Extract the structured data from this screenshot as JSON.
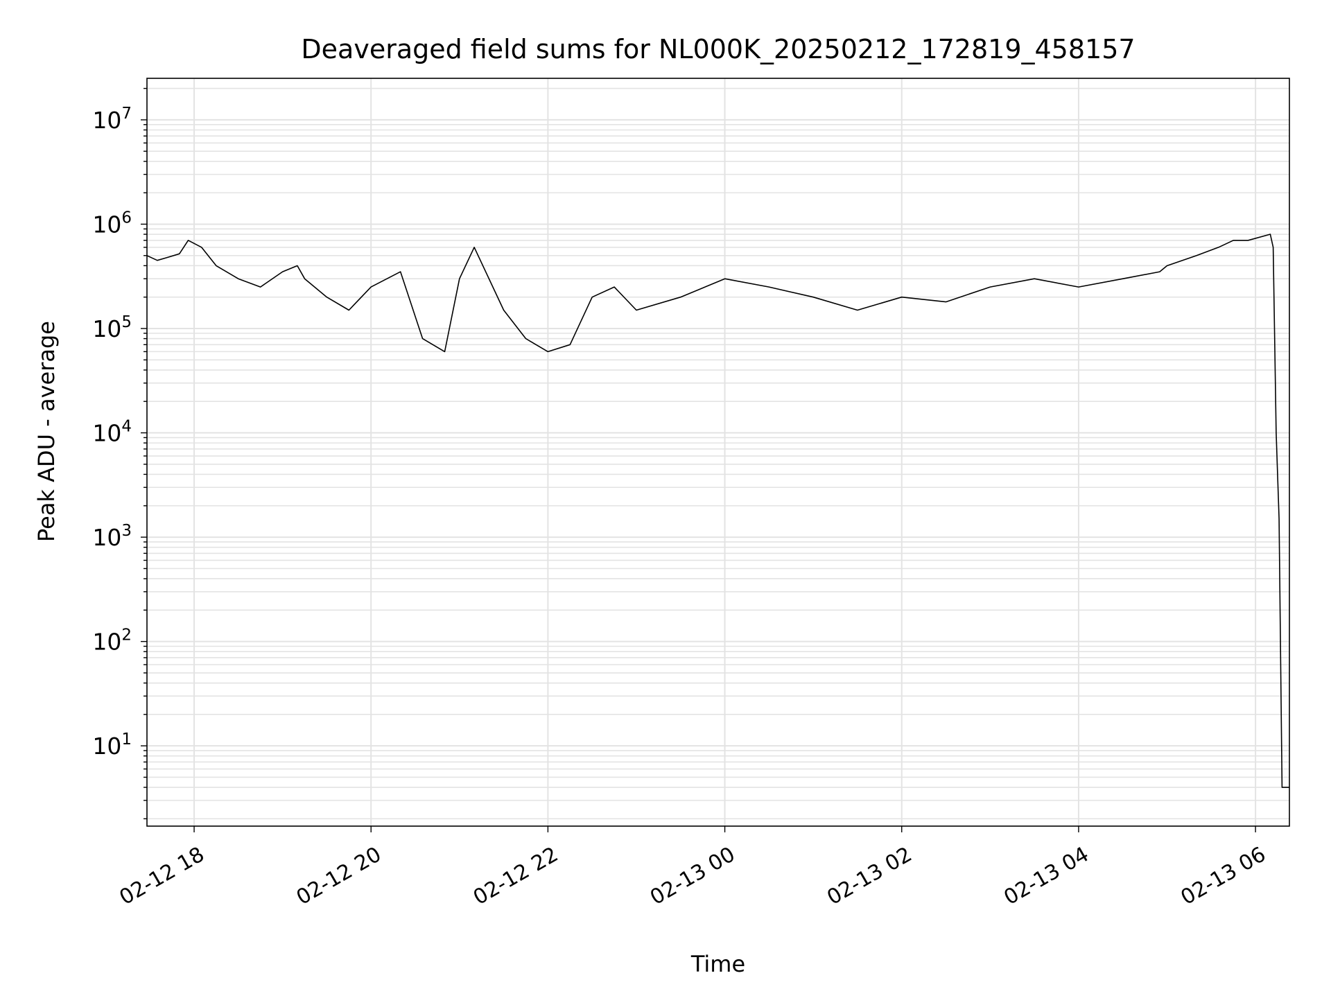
{
  "chart_data": {
    "type": "line",
    "title": "Deaveraged field sums for NL000K_20250212_172819_458157",
    "xlabel": "Time",
    "ylabel": "Peak ADU - average",
    "yscale": "log",
    "xlim": [
      "2025-02-12T17:28",
      "2025-02-13T06:23"
    ],
    "ylim": [
      1.7,
      25000000
    ],
    "x_ticks": [
      {
        "value": "2025-02-12T18:00",
        "label": "02-12 18"
      },
      {
        "value": "2025-02-12T20:00",
        "label": "02-12 20"
      },
      {
        "value": "2025-02-12T22:00",
        "label": "02-12 22"
      },
      {
        "value": "2025-02-13T00:00",
        "label": "02-13 00"
      },
      {
        "value": "2025-02-13T02:00",
        "label": "02-13 02"
      },
      {
        "value": "2025-02-13T04:00",
        "label": "02-13 04"
      },
      {
        "value": "2025-02-13T06:00",
        "label": "02-13 06"
      }
    ],
    "y_ticks": [
      {
        "value": 10,
        "exp": "1"
      },
      {
        "value": 100,
        "exp": "2"
      },
      {
        "value": 1000,
        "exp": "3"
      },
      {
        "value": 10000,
        "exp": "4"
      },
      {
        "value": 100000,
        "exp": "5"
      },
      {
        "value": 1000000,
        "exp": "6"
      },
      {
        "value": 10000000,
        "exp": "7"
      }
    ],
    "grid": true,
    "line_color": "#000000",
    "series": [
      {
        "x": [
          "2025-02-12T17:28",
          "2025-02-12T17:35",
          "2025-02-12T17:42",
          "2025-02-12T17:50",
          "2025-02-12T17:56",
          "2025-02-12T18:05",
          "2025-02-12T18:15",
          "2025-02-12T18:30",
          "2025-02-12T18:45",
          "2025-02-12T19:00",
          "2025-02-12T19:10",
          "2025-02-12T19:15",
          "2025-02-12T19:30",
          "2025-02-12T19:45",
          "2025-02-12T20:00",
          "2025-02-12T20:20",
          "2025-02-12T20:35",
          "2025-02-12T20:50",
          "2025-02-12T21:00",
          "2025-02-12T21:10",
          "2025-02-12T21:30",
          "2025-02-12T21:45",
          "2025-02-12T22:00",
          "2025-02-12T22:15",
          "2025-02-12T22:30",
          "2025-02-12T22:45",
          "2025-02-12T23:00",
          "2025-02-12T23:30",
          "2025-02-13T00:00",
          "2025-02-13T00:30",
          "2025-02-13T01:00",
          "2025-02-13T01:30",
          "2025-02-13T02:00",
          "2025-02-13T02:30",
          "2025-02-13T03:00",
          "2025-02-13T03:30",
          "2025-02-13T04:00",
          "2025-02-13T04:30",
          "2025-02-13T04:55",
          "2025-02-13T05:00",
          "2025-02-13T05:20",
          "2025-02-13T05:35",
          "2025-02-13T05:45",
          "2025-02-13T05:55",
          "2025-02-13T06:10",
          "2025-02-13T06:12",
          "2025-02-13T06:14",
          "2025-02-13T06:16",
          "2025-02-13T06:18",
          "2025-02-13T06:20",
          "2025-02-13T06:23"
        ],
        "y": [
          500000,
          450000,
          480000,
          520000,
          700000,
          600000,
          400000,
          300000,
          250000,
          350000,
          400000,
          300000,
          200000,
          150000,
          250000,
          350000,
          80000,
          60000,
          300000,
          600000,
          150000,
          80000,
          60000,
          70000,
          200000,
          250000,
          150000,
          200000,
          300000,
          250000,
          200000,
          150000,
          200000,
          180000,
          250000,
          300000,
          250000,
          300000,
          350000,
          400000,
          500000,
          600000,
          700000,
          700000,
          800000,
          600000,
          10000,
          1500,
          4,
          4,
          4
        ]
      }
    ]
  }
}
